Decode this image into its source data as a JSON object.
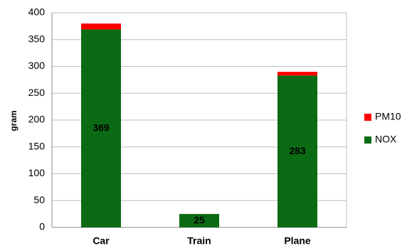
{
  "chart_data": {
    "type": "stacked_bar",
    "categories": [
      "Car",
      "Train",
      "Plane"
    ],
    "series": [
      {
        "name": "NOX",
        "color": "#0b6b14",
        "values": [
          369,
          25,
          283
        ]
      },
      {
        "name": "PM10",
        "color": "#ff0000",
        "values": [
          11,
          0,
          7
        ]
      }
    ],
    "data_label_series": 0,
    "y_label": "gram",
    "ylim": [
      0,
      400
    ],
    "yticks": [
      0,
      50,
      100,
      150,
      200,
      250,
      300,
      350,
      400
    ],
    "grid": true,
    "legend": "right"
  }
}
